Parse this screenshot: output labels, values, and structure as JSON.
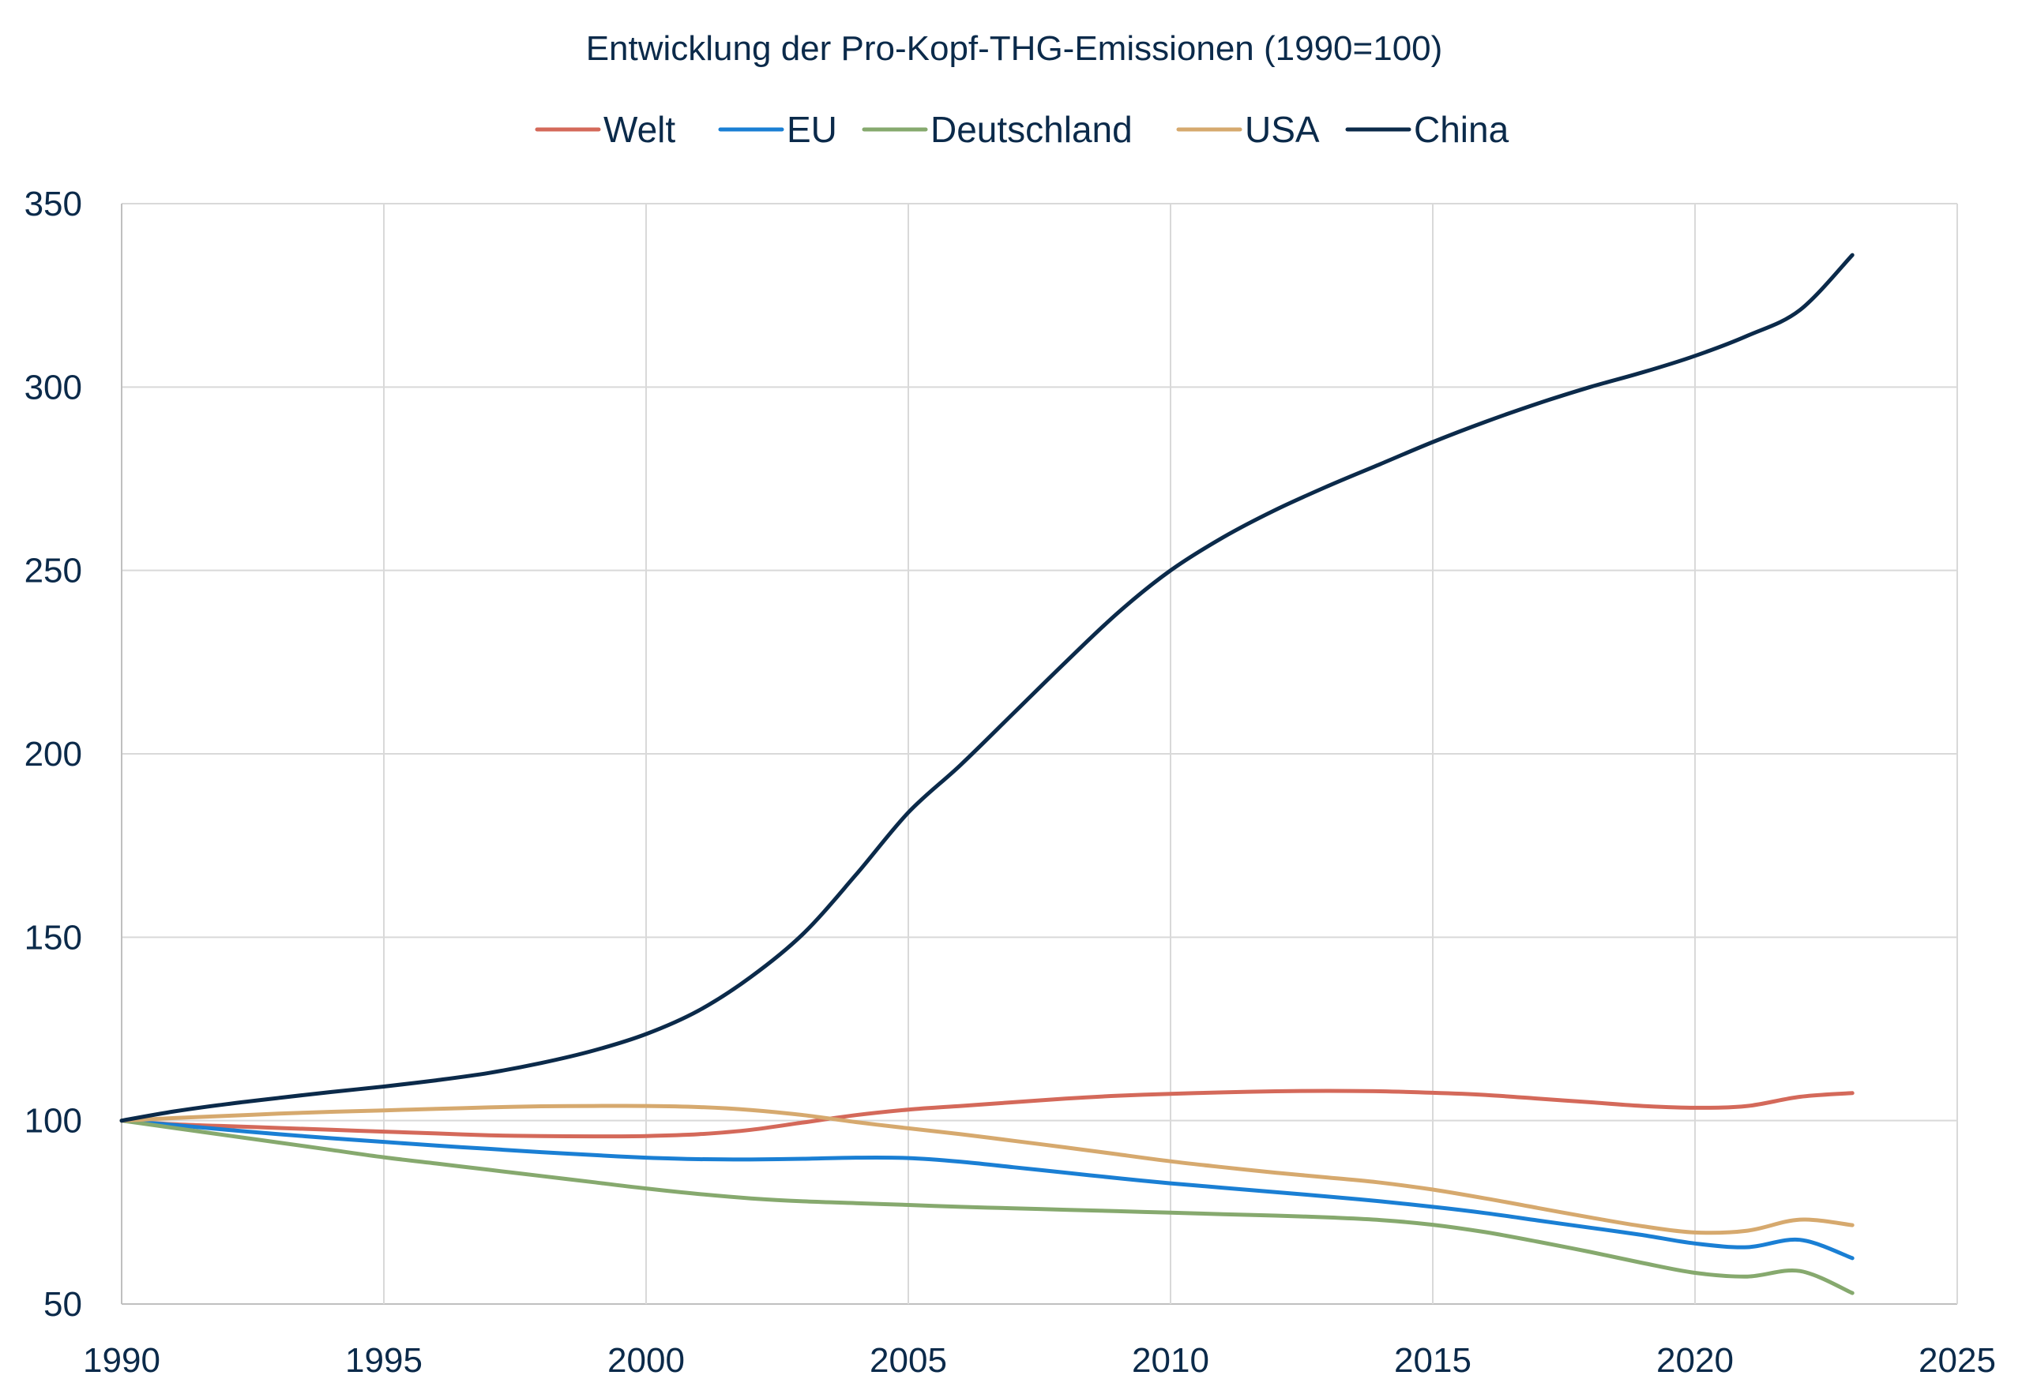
{
  "chart_data": {
    "type": "line",
    "title": "Entwicklung der Pro-Kopf-THG-Emissionen (1990=100)",
    "xlabel": "",
    "ylabel": "",
    "xlim": [
      1990,
      2025
    ],
    "ylim": [
      50,
      350
    ],
    "x_ticks": [
      1990,
      1995,
      2000,
      2005,
      2010,
      2015,
      2020,
      2025
    ],
    "y_ticks": [
      50,
      100,
      150,
      200,
      250,
      300,
      350
    ],
    "grid": true,
    "legend_position": "top",
    "x": [
      1990,
      1991,
      1992,
      1993,
      1994,
      1995,
      1996,
      1997,
      1998,
      1999,
      2000,
      2001,
      2002,
      2003,
      2004,
      2005,
      2006,
      2007,
      2008,
      2009,
      2010,
      2011,
      2012,
      2013,
      2014,
      2015,
      2016,
      2017,
      2018,
      2019,
      2020,
      2021,
      2022,
      2023
    ],
    "series": [
      {
        "name": "Welt",
        "color": "#d4695a",
        "values": [
          100,
          99,
          98.5,
          98,
          97.5,
          97,
          96.5,
          96,
          95.8,
          95.7,
          95.8,
          96.3,
          97.5,
          99.5,
          101.5,
          103,
          104,
          105,
          106,
          106.8,
          107.3,
          107.7,
          108,
          108.1,
          108,
          107.6,
          107,
          106,
          105,
          104,
          103.5,
          104,
          106.5,
          107.5
        ]
      },
      {
        "name": "EU",
        "color": "#1a7fd4",
        "values": [
          100,
          98.8,
          97.5,
          96.3,
          95.2,
          94.2,
          93.2,
          92.3,
          91.4,
          90.6,
          89.9,
          89.5,
          89.4,
          89.6,
          89.9,
          89.8,
          88.8,
          87.3,
          85.8,
          84.3,
          82.9,
          81.7,
          80.5,
          79.3,
          78,
          76.5,
          74.8,
          72.8,
          70.8,
          68.8,
          66.5,
          65.5,
          67.5,
          62.5
        ]
      },
      {
        "name": "Deutschland",
        "color": "#86a96e",
        "values": [
          100,
          98,
          96,
          94,
          92,
          90,
          88.3,
          86.6,
          84.9,
          83.2,
          81.5,
          80,
          78.8,
          78,
          77.5,
          77,
          76.5,
          76.1,
          75.7,
          75.3,
          74.9,
          74.5,
          74.1,
          73.6,
          72.9,
          71.6,
          69.6,
          67,
          64.2,
          61.2,
          58.5,
          57.5,
          59,
          53
        ]
      },
      {
        "name": "USA",
        "color": "#d6a96e",
        "values": [
          100,
          100.7,
          101.3,
          101.9,
          102.4,
          102.8,
          103.2,
          103.6,
          103.9,
          104,
          104,
          103.7,
          102.9,
          101.5,
          99.6,
          97.9,
          96.3,
          94.5,
          92.7,
          90.8,
          88.9,
          87.3,
          85.8,
          84.5,
          83.1,
          81.2,
          78.8,
          76.2,
          73.6,
          71.2,
          69.5,
          70,
          73,
          71.5
        ]
      },
      {
        "name": "China",
        "color": "#0b2a4a",
        "values": [
          100,
          102.5,
          104.5,
          106.2,
          107.8,
          109.3,
          111,
          113,
          115.7,
          119.1,
          123.6,
          130,
          139.2,
          151,
          167,
          184,
          197,
          211,
          225,
          238.5,
          250,
          259,
          266.5,
          273,
          279,
          285,
          290.5,
          295.5,
          300,
          304,
          308.5,
          314,
          321,
          336
        ]
      }
    ]
  }
}
